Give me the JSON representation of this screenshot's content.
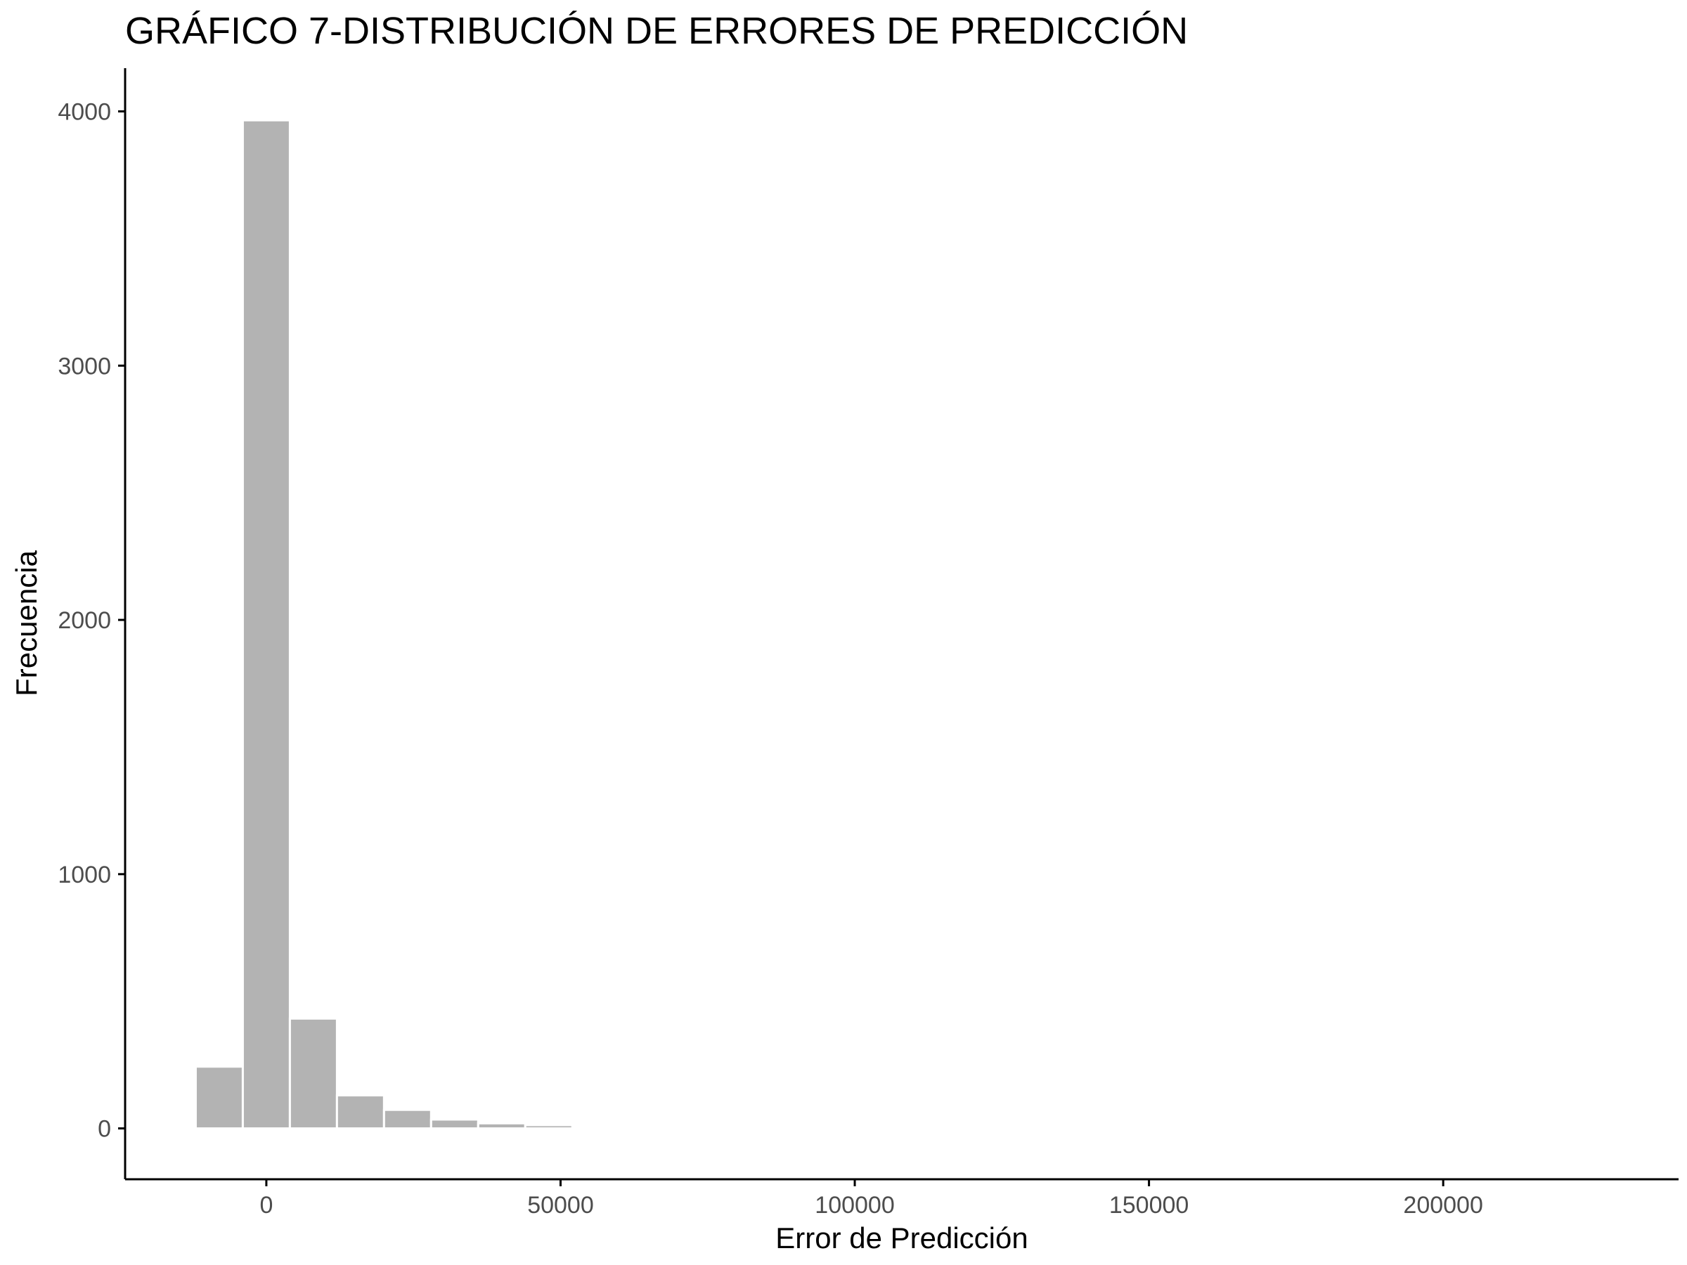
{
  "chart_data": {
    "type": "bar",
    "title": "GRÁFICO 7-DISTRIBUCIÓN DE ERRORES DE PREDICCIÓN",
    "xlabel": "Error de Predicción",
    "ylabel": "Frecuencia",
    "xlim": [
      -24000,
      240000
    ],
    "ylim": [
      -200,
      4170
    ],
    "bin_width": 8000,
    "bins": [
      {
        "start": -12000,
        "end": -4000,
        "count": 243
      },
      {
        "start": -4000,
        "end": 4000,
        "count": 3965
      },
      {
        "start": 4000,
        "end": 12000,
        "count": 432
      },
      {
        "start": 12000,
        "end": 20000,
        "count": 130
      },
      {
        "start": 20000,
        "end": 28000,
        "count": 73
      },
      {
        "start": 28000,
        "end": 36000,
        "count": 35
      },
      {
        "start": 36000,
        "end": 44000,
        "count": 20
      },
      {
        "start": 44000,
        "end": 52000,
        "count": 13
      }
    ],
    "x_ticks": [
      {
        "value": 0,
        "label": "0"
      },
      {
        "value": 50000,
        "label": "50000"
      },
      {
        "value": 100000,
        "label": "100000"
      },
      {
        "value": 150000,
        "label": "150000"
      },
      {
        "value": 200000,
        "label": "200000"
      }
    ],
    "y_ticks": [
      {
        "value": 0,
        "label": "0"
      },
      {
        "value": 1000,
        "label": "1000"
      },
      {
        "value": 2000,
        "label": "2000"
      },
      {
        "value": 3000,
        "label": "3000"
      },
      {
        "value": 4000,
        "label": "4000"
      }
    ],
    "grid": false,
    "legend": "none",
    "colors": {
      "bar_fill": "#b3b3b3",
      "bar_outline": "#ffffff",
      "axis": "#000000",
      "tick_label": "#4d4d4d"
    }
  }
}
